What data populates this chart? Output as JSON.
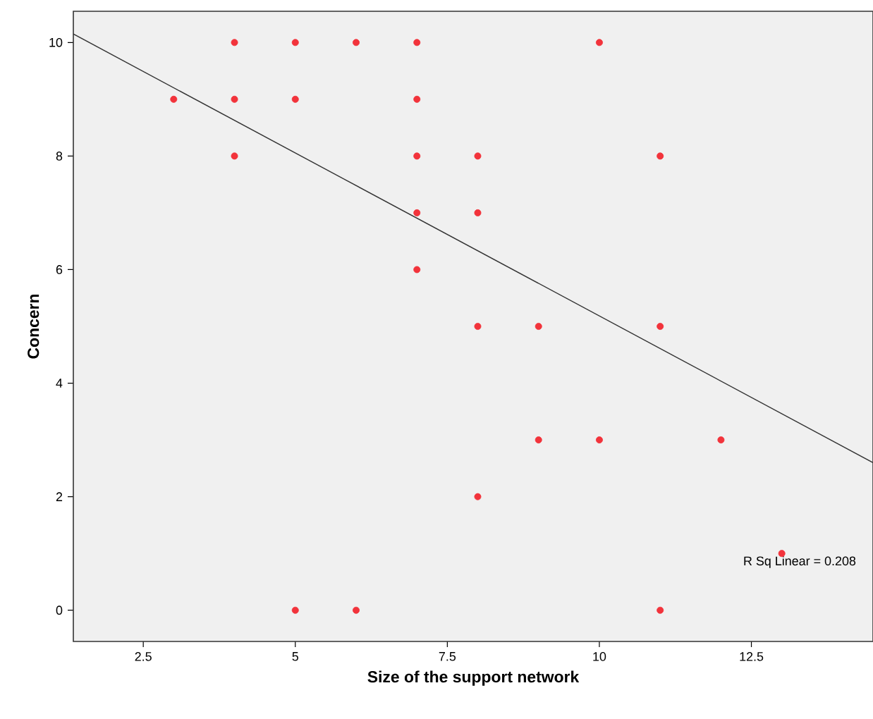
{
  "chart_data": {
    "type": "scatter",
    "xlabel": "Size of the support network",
    "ylabel": "Concern",
    "xlim": [
      1.35,
      14.5
    ],
    "ylim": [
      -0.55,
      10.55
    ],
    "xticks": [
      2.5,
      5,
      7.5,
      10,
      12.5
    ],
    "yticks": [
      0,
      2,
      4,
      6,
      8,
      10
    ],
    "grid": false,
    "annotations": [
      "R Sq Linear = 0.208"
    ],
    "series": [
      {
        "marker": "circle",
        "color": "#f2333b",
        "x": [
          3,
          4,
          4,
          4,
          5,
          5,
          5,
          6,
          6,
          7,
          7,
          7,
          7,
          7,
          8,
          8,
          8,
          8,
          9,
          9,
          10,
          10,
          11,
          11,
          11,
          12,
          13
        ],
        "values": [
          9,
          10,
          9,
          8,
          10,
          9,
          0,
          10,
          0,
          10,
          9,
          8,
          7,
          6,
          8,
          7,
          5,
          2,
          5,
          3,
          10,
          3,
          8,
          5,
          0,
          3,
          1
        ]
      },
      {
        "type": "line",
        "color": "#333333",
        "x": [
          1.35,
          14.5
        ],
        "values": [
          10.15,
          2.6
        ]
      }
    ]
  }
}
